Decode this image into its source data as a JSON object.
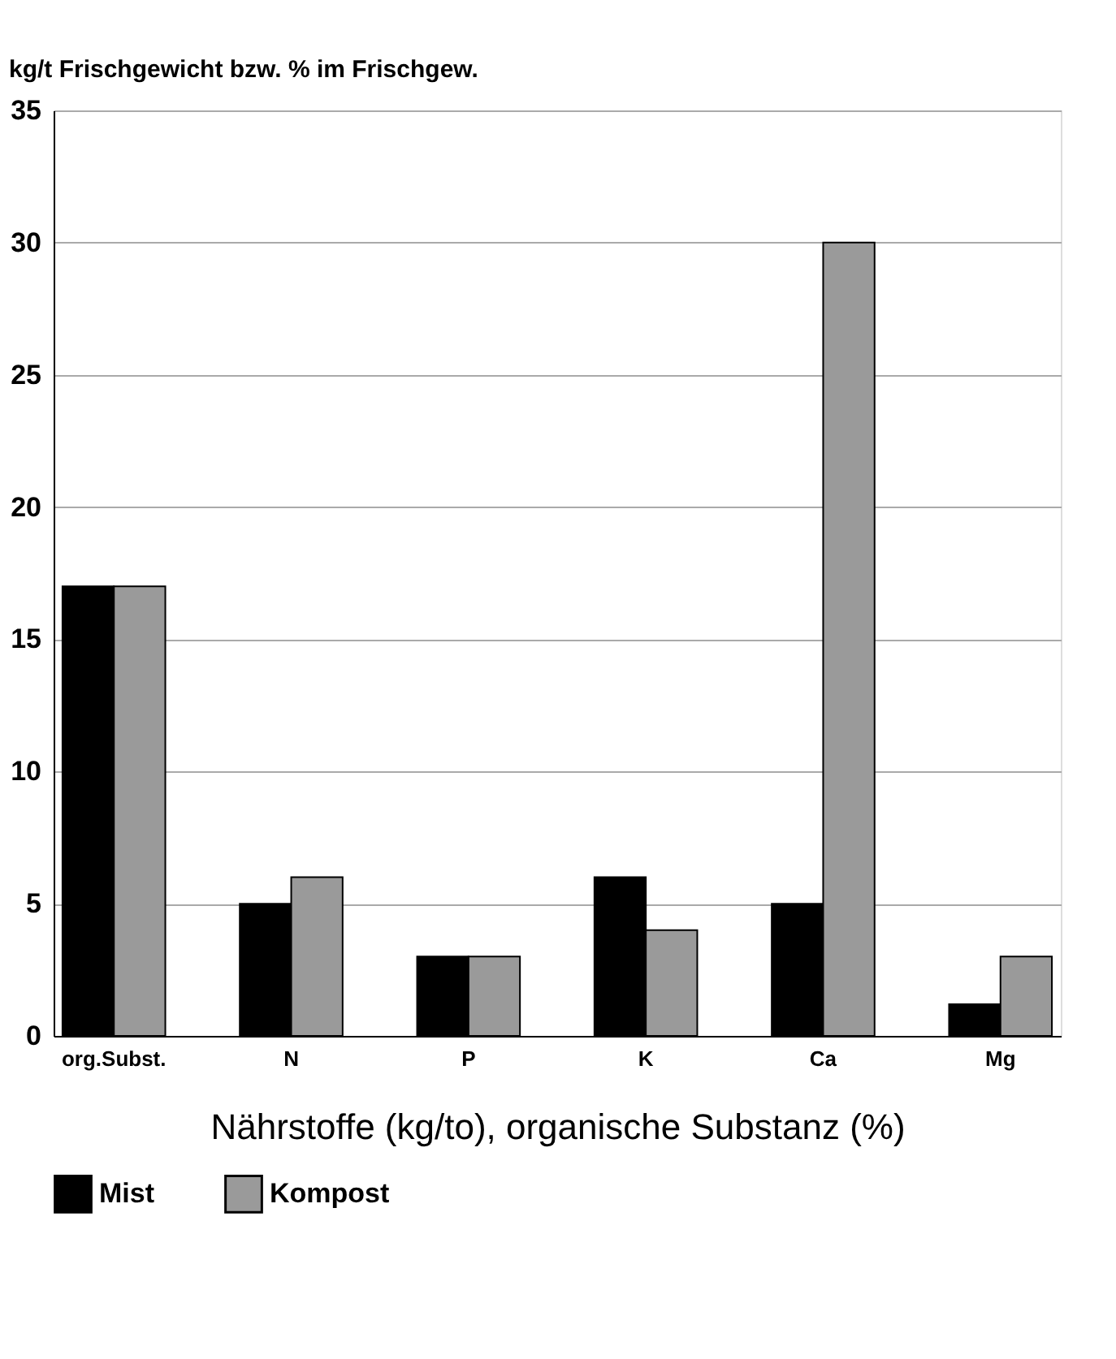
{
  "chart_data": {
    "type": "bar",
    "ylabel": "kg/t Frischgewicht bzw. % im Frischgew.",
    "xlabel": "Nährstoffe (kg/to), organische Substanz (%)",
    "categories": [
      "org.Subst.",
      "N",
      "P",
      "K",
      "Ca",
      "Mg"
    ],
    "series": [
      {
        "name": "Mist",
        "color": "#000000",
        "values": [
          17,
          5,
          3,
          6,
          5,
          1.2
        ]
      },
      {
        "name": "Kompost",
        "color": "#9a9a9a",
        "values": [
          17,
          6,
          3,
          4,
          30,
          3
        ]
      }
    ],
    "ylim": [
      0,
      35
    ],
    "yticks": [
      0,
      5,
      10,
      15,
      20,
      25,
      30,
      35
    ],
    "grid": "y",
    "legend": "bottom"
  }
}
